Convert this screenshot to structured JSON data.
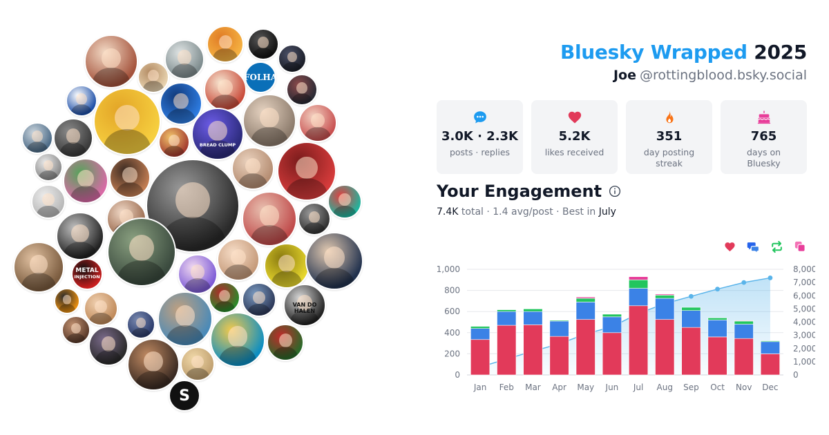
{
  "header": {
    "brand": "Bluesky Wrapped",
    "year": "2025",
    "display_name": "Joe",
    "handle": "@rottingblood.bsky.social"
  },
  "stats": [
    {
      "icon": "speech-bubble-icon",
      "value": "3.0K · 2.3K",
      "label": "posts · replies"
    },
    {
      "icon": "heart-icon",
      "value": "5.2K",
      "label": "likes received"
    },
    {
      "icon": "flame-icon",
      "value": "351",
      "label": "day posting streak"
    },
    {
      "icon": "birthday-cake-icon",
      "value": "765",
      "label": "days on Bluesky"
    }
  ],
  "engagement": {
    "title": "Your Engagement",
    "summary_total": "7.4K",
    "summary_mid": "total · 1.4 avg/post · Best in",
    "summary_best": "July"
  },
  "avatar_cloud": {
    "folha_text": "FOLHA",
    "metal_text_1": "METAL",
    "metal_text_2": "INJECTION",
    "vandohalen_text": "VAN DO HALEN",
    "breadclump_text": "BREAD CLUMP",
    "s_badge": "S"
  },
  "colors": {
    "brand": "#1d9bf0",
    "likes": "#e23a5a",
    "replies": "#3b82e6",
    "reposts": "#22c55e",
    "quotes": "#e83e9a",
    "cumulative": "#5ab4ea"
  },
  "legend": [
    {
      "icon": "heart-icon",
      "color": "#e23a5a"
    },
    {
      "icon": "replies-icon",
      "color": "#3b82e6"
    },
    {
      "icon": "repost-icon",
      "color": "#22c55e"
    },
    {
      "icon": "quote-icon",
      "color": "#e83e9a"
    }
  ],
  "chart_data": {
    "type": "bar",
    "categories": [
      "Jan",
      "Feb",
      "Mar",
      "Apr",
      "May",
      "Jun",
      "Jul",
      "Aug",
      "Sep",
      "Oct",
      "Nov",
      "Dec"
    ],
    "ylim": [
      0,
      1000
    ],
    "y2lim": [
      0,
      8000
    ],
    "y_ticks": [
      "0",
      "200",
      "400",
      "600",
      "800",
      "1,000"
    ],
    "y2_ticks": [
      "0",
      "1,000",
      "2,000",
      "3,000",
      "4,000",
      "5,000",
      "6,000",
      "7,000",
      "8,000"
    ],
    "series": [
      {
        "values": [
          335,
          470,
          475,
          365,
          525,
          400,
          655,
          525,
          450,
          360,
          345,
          200
        ]
      },
      {
        "values": [
          105,
          130,
          125,
          145,
          165,
          150,
          165,
          200,
          160,
          160,
          135,
          115
        ]
      },
      {
        "values": [
          20,
          17,
          25,
          8,
          35,
          25,
          80,
          30,
          30,
          20,
          30,
          8
        ]
      },
      {
        "values": [
          0,
          0,
          0,
          0,
          12,
          0,
          30,
          10,
          0,
          0,
          5,
          0
        ]
      },
      {
        "type": "area",
        "axis": "right",
        "values": [
          600,
          1200,
          1800,
          2350,
          3100,
          3650,
          4650,
          5400,
          5950,
          6500,
          7000,
          7350
        ]
      }
    ],
    "grid": true
  }
}
